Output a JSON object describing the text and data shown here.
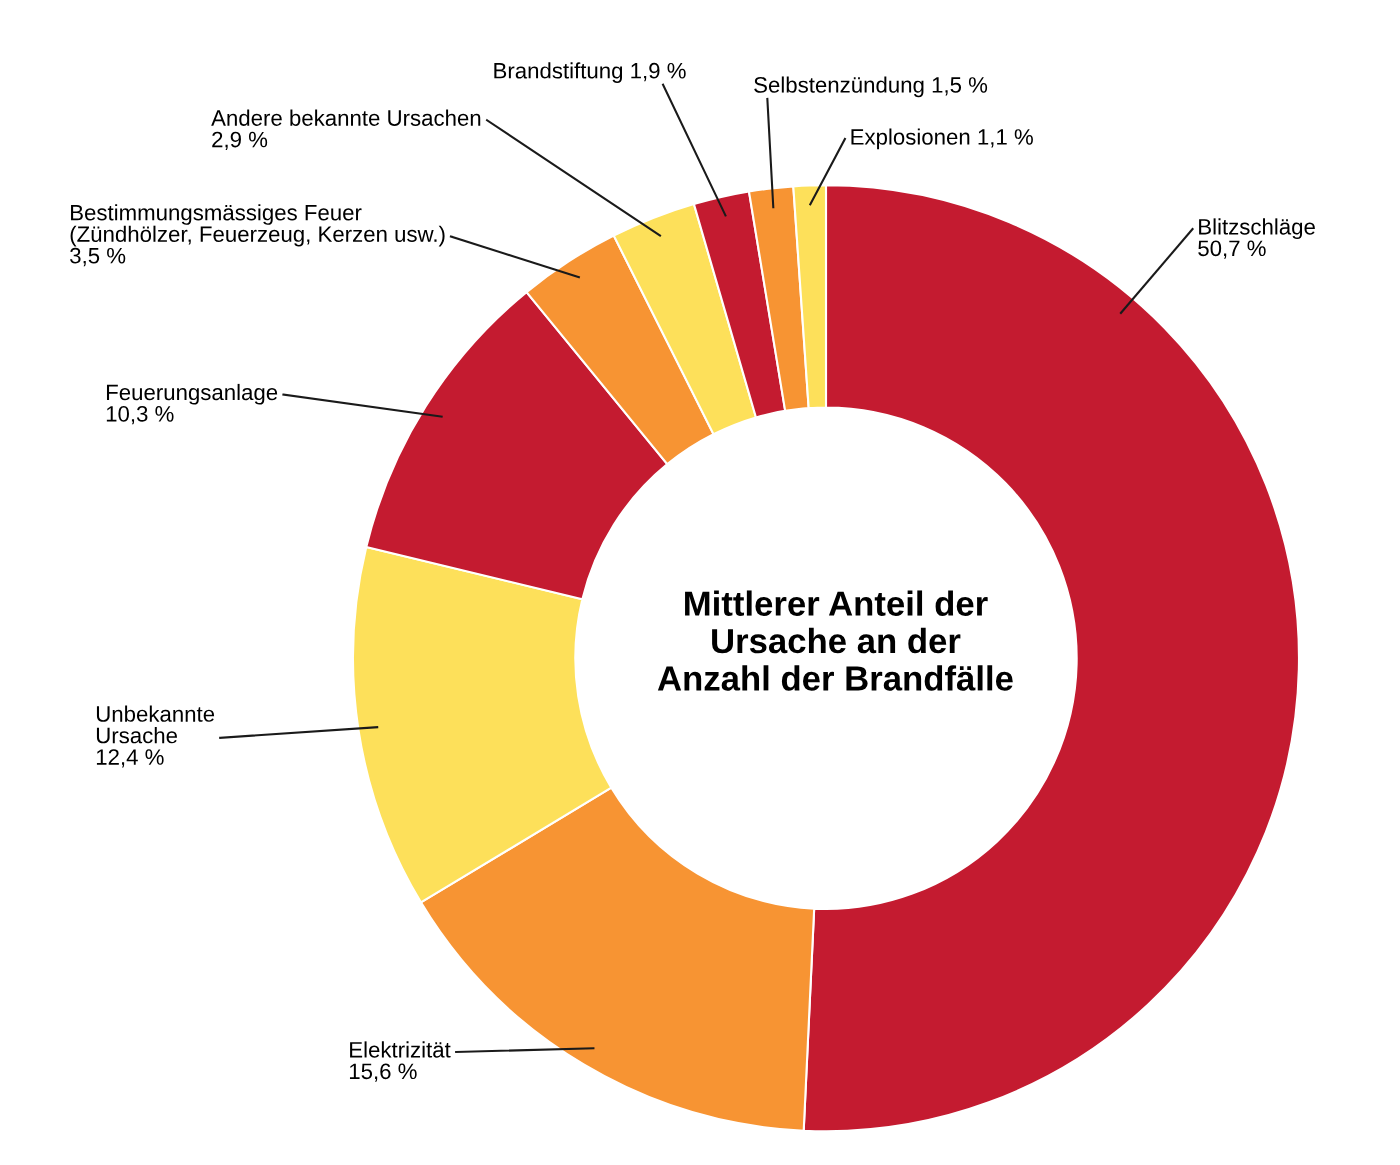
{
  "chart_data": {
    "type": "donut",
    "title": "Mittlerer Anteil der\nUrsache an der\nAnzahl der Brandfälle",
    "categories": [
      "Blitzschläge",
      "Elektrizität",
      "Unbekannte\nUrsache",
      "Feuerungsanlage",
      "Bestimmungsmässiges Feuer\n(Zündhölzer, Feuerzeug, Kerzen usw.)",
      "Andere bekannte Ursachen",
      "Brandstiftung",
      "Selbstenzündung",
      "Explosionen"
    ],
    "values": [
      50.7,
      15.6,
      12.4,
      10.3,
      3.5,
      2.9,
      1.9,
      1.5,
      1.1
    ],
    "value_labels": [
      "50,7 %",
      "15,6 %",
      "12,4 %",
      "10,3 %",
      "3,5 %",
      "2,9 %",
      "1,9 %",
      "1,5 %",
      "1,1 %"
    ],
    "colors": [
      "#c41b30",
      "#f79433",
      "#fde05a",
      "#c41b30",
      "#f79433",
      "#fde05a",
      "#c41b30",
      "#f79433",
      "#fde05a"
    ]
  }
}
